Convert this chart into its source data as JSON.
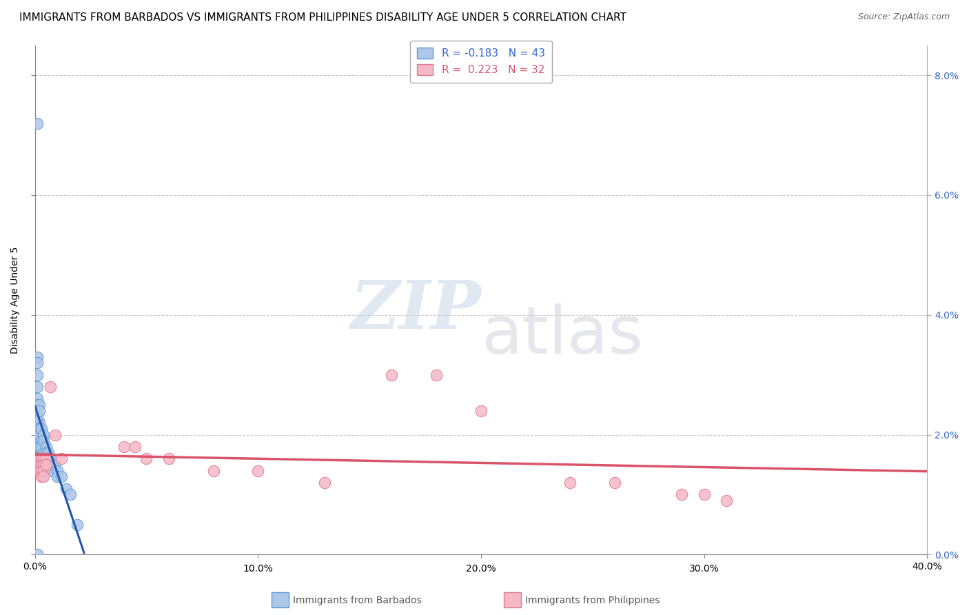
{
  "title": "IMMIGRANTS FROM BARBADOS VS IMMIGRANTS FROM PHILIPPINES DISABILITY AGE UNDER 5 CORRELATION CHART",
  "source": "Source: ZipAtlas.com",
  "ylabel": "Disability Age Under 5",
  "xlim": [
    0.0,
    0.4
  ],
  "ylim": [
    0.0,
    0.085
  ],
  "xticks": [
    0.0,
    0.1,
    0.2,
    0.3,
    0.4
  ],
  "xticklabels": [
    "0.0%",
    "",
    "",
    "",
    "40.0%"
  ],
  "yticks": [
    0.0,
    0.02,
    0.04,
    0.06,
    0.08
  ],
  "yticklabels": [
    "0.0%",
    "2.0%",
    "4.0%",
    "6.0%",
    "8.0%"
  ],
  "grid_color": "#c8c8c8",
  "background_color": "#ffffff",
  "barbados_color": "#aec6e8",
  "barbados_edge_color": "#5b9bd5",
  "philippines_color": "#f4b8c8",
  "philippines_edge_color": "#e07b8a",
  "barbados_line_color": "#2255aa",
  "philippines_line_color": "#d9546a",
  "legend_label_barbados": "Immigrants from Barbados",
  "legend_label_philippines": "Immigrants from Philippines",
  "barbados_x": [
    0.001,
    0.001,
    0.001,
    0.001,
    0.001,
    0.001,
    0.001,
    0.002,
    0.002,
    0.002,
    0.002,
    0.002,
    0.003,
    0.003,
    0.003,
    0.004,
    0.004,
    0.004,
    0.005,
    0.005,
    0.006,
    0.006,
    0.007,
    0.008,
    0.008,
    0.009,
    0.01,
    0.01,
    0.012,
    0.014,
    0.016,
    0.019,
    0.001,
    0.001,
    0.001,
    0.001,
    0.001,
    0.002,
    0.002,
    0.002,
    0.001,
    0.001,
    0.001
  ],
  "barbados_y": [
    0.072,
    0.022,
    0.021,
    0.021,
    0.02,
    0.019,
    0.018,
    0.022,
    0.021,
    0.02,
    0.018,
    0.016,
    0.021,
    0.019,
    0.018,
    0.02,
    0.019,
    0.017,
    0.018,
    0.017,
    0.017,
    0.016,
    0.016,
    0.015,
    0.014,
    0.015,
    0.014,
    0.013,
    0.013,
    0.011,
    0.01,
    0.005,
    0.03,
    0.028,
    0.026,
    0.025,
    0.023,
    0.025,
    0.024,
    0.016,
    0.033,
    0.032,
    0.0
  ],
  "philippines_x": [
    0.001,
    0.002,
    0.002,
    0.002,
    0.003,
    0.003,
    0.003,
    0.003,
    0.004,
    0.004,
    0.004,
    0.004,
    0.005,
    0.005,
    0.007,
    0.009,
    0.012,
    0.16,
    0.18,
    0.2,
    0.24,
    0.26,
    0.29,
    0.3,
    0.31,
    0.05,
    0.06,
    0.08,
    0.1,
    0.13,
    0.04,
    0.045
  ],
  "philippines_y": [
    0.016,
    0.016,
    0.015,
    0.014,
    0.016,
    0.015,
    0.014,
    0.013,
    0.016,
    0.015,
    0.014,
    0.013,
    0.016,
    0.015,
    0.028,
    0.02,
    0.016,
    0.03,
    0.03,
    0.024,
    0.012,
    0.012,
    0.01,
    0.01,
    0.009,
    0.016,
    0.016,
    0.014,
    0.014,
    0.012,
    0.018,
    0.018
  ],
  "watermark_zip": "ZIP",
  "watermark_atlas": "atlas",
  "title_fontsize": 11,
  "axis_label_fontsize": 10,
  "tick_fontsize": 10,
  "legend_fontsize": 11,
  "source_fontsize": 9
}
